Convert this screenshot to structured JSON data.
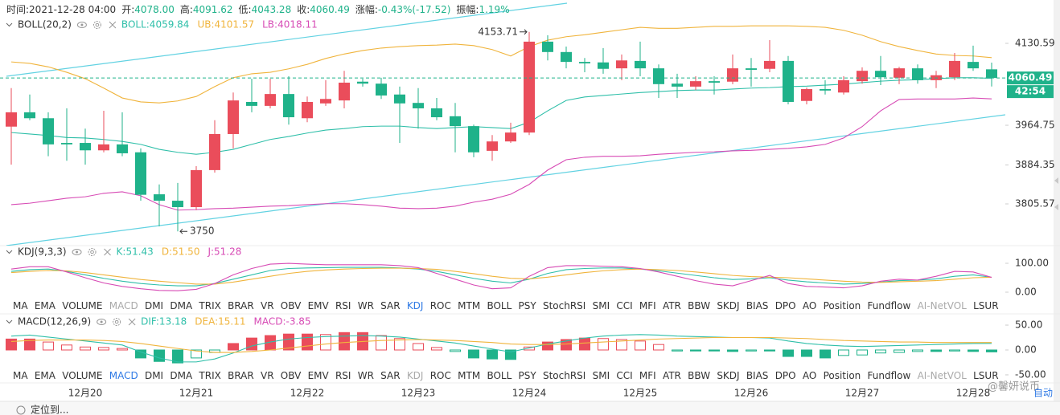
{
  "header": {
    "value_color": "#1fb28a",
    "items": [
      {
        "label": "时间:",
        "value": "2021-12-28 04:00"
      },
      {
        "label": "开:",
        "value": "4078.00"
      },
      {
        "label": "高:",
        "value": "4091.62"
      },
      {
        "label": "低:",
        "value": "4043.28"
      },
      {
        "label": "收:",
        "value": "4060.49"
      },
      {
        "label": "涨幅:",
        "value": "-0.43%(-17.52)"
      },
      {
        "label": "振幅:",
        "value": "1.19%"
      }
    ]
  },
  "indicator_tabs": [
    "MA",
    "EMA",
    "VOLUME",
    "MACD",
    "DMI",
    "DMA",
    "TRIX",
    "BRAR",
    "VR",
    "OBV",
    "EMV",
    "RSI",
    "WR",
    "SAR",
    "KDJ",
    "ROC",
    "MTM",
    "BOLL",
    "PSY",
    "StochRSI",
    "SMI",
    "CCI",
    "MFI",
    "ATR",
    "BBW",
    "SKDJ",
    "BIAS",
    "DPO",
    "AO",
    "Position",
    "Fundflow",
    "AI-NetVOL",
    "LSUR"
  ],
  "footer": {
    "locate": "定位到...",
    "watermark": "@馨妍说币",
    "auto_label": "自动"
  },
  "chart_data": [
    {
      "type": "candlestick",
      "title": "BOLL(20,2)",
      "up_color": "#ea4d5b",
      "down_color": "#1fb28a",
      "countdown": "42:54",
      "categories": [
        null,
        null,
        null,
        null,
        "12月20",
        null,
        null,
        null,
        null,
        null,
        "12月21",
        null,
        null,
        null,
        null,
        null,
        "12月22",
        null,
        null,
        null,
        null,
        null,
        "12月23",
        null,
        null,
        null,
        null,
        null,
        "12月24",
        null,
        null,
        null,
        null,
        null,
        "12月25",
        null,
        null,
        null,
        null,
        null,
        "12月26",
        null,
        null,
        null,
        null,
        null,
        "12月27",
        null,
        null,
        null,
        null,
        null,
        "12月28",
        null
      ],
      "open": [
        3962,
        3991,
        3979,
        3929,
        3929,
        3914,
        3926,
        3910,
        3825,
        3812,
        3799,
        3874,
        3947,
        4012,
        4004,
        4028,
        3979,
        4009,
        4015,
        4053,
        4049,
        4027,
        4010,
        3999,
        3983,
        3963,
        3913,
        3932,
        3950,
        4134,
        4113,
        4093,
        4092,
        4080,
        4095,
        4080,
        4049,
        4043,
        4054,
        4053,
        4080,
        4079,
        4095,
        4014,
        4038,
        4031,
        4054,
        4075,
        4061,
        4080,
        4056,
        4062,
        4093,
        4078
      ],
      "high": [
        4040,
        4027,
        3991,
        3999,
        3958,
        3994,
        3991,
        3918,
        3845,
        3848,
        3882,
        3975,
        4031,
        4059,
        4059,
        4064,
        4023,
        4056,
        4075,
        4059,
        4061,
        4043,
        4040,
        4020,
        4010,
        3966,
        3945,
        3970,
        4153.71,
        4147,
        4124,
        4101,
        4121,
        4108,
        4134,
        4088,
        4069,
        4064,
        4064,
        4108,
        4101,
        4137,
        4105,
        4041,
        4056,
        4064,
        4082,
        4105,
        4083,
        4088,
        4075,
        4111,
        4126,
        4091.62
      ],
      "low": [
        3885,
        3975,
        3902,
        3893,
        3885,
        3910,
        3902,
        3812,
        3760,
        3750,
        3793,
        3869,
        3918,
        3991,
        3999,
        3966,
        3971,
        4004,
        3999,
        4043,
        4018,
        3929,
        3958,
        3975,
        3910,
        3900,
        3893,
        3929,
        3945,
        4096,
        4080,
        4072,
        4069,
        4056,
        4064,
        4020,
        4020,
        4036,
        4027,
        4048,
        4043,
        4072,
        4007,
        4007,
        4027,
        4027,
        4049,
        4046,
        4048,
        4049,
        4040,
        4056,
        4075,
        4043.28
      ],
      "close": [
        3991,
        3979,
        3926,
        3926,
        3914,
        3926,
        3908,
        3824,
        3812,
        3799,
        3874,
        3947,
        4015,
        4004,
        4028,
        3981,
        4012,
        4018,
        4051,
        4049,
        4025,
        4009,
        3999,
        3981,
        3963,
        3910,
        3932,
        3950,
        4134,
        4113,
        4093,
        4090,
        4079,
        4096,
        4080,
        4048,
        4043,
        4054,
        4051,
        4080,
        4077,
        4095,
        4012,
        4038,
        4035,
        4056,
        4075,
        4062,
        4080,
        4056,
        4066,
        4095,
        4080,
        4060.49
      ],
      "series": [
        {
          "label": "BOLL:4059.84",
          "color": "#2fbfa9",
          "values": [
            3950,
            3947,
            3944,
            3940,
            3939,
            3936,
            3932,
            3926,
            3916,
            3910,
            3906,
            3910,
            3916,
            3926,
            3936,
            3942,
            3949,
            3955,
            3958,
            3962,
            3963,
            3963,
            3960,
            3958,
            3960,
            3962,
            3960,
            3958,
            3971,
            3994,
            4015,
            4022,
            4025,
            4028,
            4031,
            4033,
            4035,
            4036,
            4036,
            4038,
            4040,
            4041,
            4043,
            4044,
            4046,
            4048,
            4051,
            4054,
            4056,
            4057,
            4059,
            4061,
            4061,
            4059.84
          ]
        },
        {
          "label": "UB:4101.57",
          "color": "#f0b43c",
          "values": [
            4093,
            4090,
            4083,
            4072,
            4059,
            4040,
            4020,
            4012,
            4010,
            4014,
            4023,
            4043,
            4061,
            4069,
            4072,
            4079,
            4088,
            4100,
            4109,
            4116,
            4121,
            4124,
            4126,
            4127,
            4129,
            4126,
            4118,
            4105,
            4124,
            4137,
            4144,
            4148,
            4153,
            4158,
            4163,
            4161,
            4161,
            4163,
            4165,
            4165,
            4166,
            4166,
            4166,
            4165,
            4163,
            4157,
            4147,
            4134,
            4124,
            4116,
            4109,
            4106,
            4105,
            4101.57
          ]
        },
        {
          "label": "LB:4018.11",
          "color": "#d74bb5",
          "values": [
            3804,
            3807,
            3812,
            3817,
            3820,
            3827,
            3830,
            3822,
            3804,
            3793,
            3794,
            3796,
            3797,
            3799,
            3801,
            3802,
            3804,
            3806,
            3806,
            3804,
            3801,
            3797,
            3796,
            3797,
            3801,
            3809,
            3815,
            3825,
            3845,
            3874,
            3895,
            3900,
            3902,
            3902,
            3903,
            3906,
            3908,
            3910,
            3911,
            3913,
            3914,
            3916,
            3918,
            3921,
            3926,
            3939,
            3962,
            3994,
            4017,
            4018,
            4018,
            4018,
            4020,
            4018.11
          ]
        }
      ],
      "ylim": [
        3722.7,
        4210.2
      ],
      "yticks": [
        3805.57,
        3884.35,
        3964.75,
        4130.59
      ],
      "grid": false
    },
    {
      "type": "line",
      "title": "KDJ(9,3,3)",
      "active_tab": 14,
      "disabled_tabs": [
        3,
        31
      ],
      "series": [
        {
          "label": "K:51.43",
          "color": "#2fbfa9",
          "values": [
            72,
            78,
            80,
            72,
            60,
            48,
            38,
            30,
            25,
            22,
            22,
            30,
            45,
            60,
            75,
            82,
            84,
            85,
            86,
            86,
            86,
            84,
            80,
            72,
            60,
            48,
            38,
            32,
            45,
            65,
            78,
            82,
            84,
            84,
            80,
            74,
            66,
            58,
            50,
            44,
            46,
            50,
            42,
            36,
            32,
            28,
            30,
            35,
            40,
            42,
            46,
            55,
            60,
            51.43
          ]
        },
        {
          "label": "D:51.50",
          "color": "#f0b43c",
          "values": [
            68,
            72,
            75,
            74,
            68,
            60,
            52,
            44,
            38,
            33,
            28,
            28,
            35,
            45,
            55,
            65,
            72,
            77,
            80,
            82,
            83,
            83,
            82,
            79,
            72,
            64,
            55,
            48,
            46,
            52,
            60,
            68,
            74,
            78,
            80,
            78,
            75,
            70,
            64,
            58,
            54,
            52,
            50,
            46,
            42,
            38,
            35,
            34,
            36,
            38,
            40,
            45,
            50,
            51.5
          ]
        },
        {
          "label": "J:51.28",
          "color": "#d74bb5",
          "values": [
            80,
            88,
            88,
            70,
            50,
            32,
            20,
            12,
            6,
            5,
            10,
            30,
            60,
            82,
            97,
            100,
            97,
            95,
            95,
            95,
            95,
            92,
            85,
            65,
            45,
            25,
            12,
            15,
            55,
            85,
            92,
            92,
            90,
            88,
            82,
            70,
            55,
            40,
            28,
            22,
            40,
            58,
            30,
            20,
            18,
            15,
            22,
            38,
            45,
            42,
            55,
            72,
            70,
            51.28
          ]
        }
      ],
      "ylim": [
        -22.2,
        155.6
      ],
      "yticks": [
        {
          "value": 0,
          "label": "0.00"
        },
        {
          "value": 100,
          "label": "100.00"
        }
      ]
    },
    {
      "type": "macd",
      "title": "MACD(12,26,9)",
      "active_tab": 3,
      "disabled_tabs": [
        14,
        31
      ],
      "series": [
        {
          "label": "DIF:13.18",
          "color": "#2fbfa9",
          "values": [
            28,
            30,
            26,
            22,
            18,
            14,
            10,
            -4,
            -16,
            -24,
            -24,
            -18,
            -6,
            8,
            16,
            22,
            25,
            27,
            28,
            29,
            28,
            26,
            22,
            18,
            14,
            8,
            2,
            -4,
            4,
            12,
            18,
            24,
            28,
            30,
            31,
            30,
            28,
            27,
            26,
            25,
            25,
            24,
            18,
            13,
            10,
            8,
            7,
            8,
            9,
            10,
            11,
            12,
            13,
            13.18
          ]
        },
        {
          "label": "DEA:15.11",
          "color": "#f0b43c",
          "values": [
            17,
            19,
            20,
            20,
            20,
            19,
            17,
            13,
            8,
            3,
            -2,
            -5,
            -5,
            -3,
            0,
            4,
            8,
            12,
            15,
            17,
            19,
            20,
            21,
            20,
            19,
            17,
            15,
            12,
            11,
            11,
            12,
            14,
            16,
            18,
            20,
            22,
            23,
            24,
            25,
            25,
            25,
            25,
            24,
            23,
            21,
            19,
            18,
            17,
            16,
            16,
            15,
            15,
            15,
            15.11
          ]
        }
      ],
      "histogram": {
        "label": "MACD:-3.85",
        "color": "#d74bb5",
        "up_color": "#ea4d5b",
        "down_color": "#1fb28a",
        "values": [
          22,
          22,
          16,
          10,
          6,
          5,
          3,
          -16,
          -23,
          -26,
          -16,
          -5,
          13,
          24,
          29,
          32,
          32,
          31,
          35,
          35,
          29,
          23,
          13,
          5,
          -3,
          -16,
          -18,
          -19,
          6,
          16,
          21,
          24,
          23,
          21,
          18,
          11,
          -2,
          -2,
          -2,
          -3,
          -2,
          -2,
          -13,
          -13,
          -16,
          -11,
          -10,
          -6,
          -5,
          -3,
          -3,
          -2,
          -3,
          -3.85
        ]
      },
      "ylim": [
        -58.1,
        69.4
      ],
      "yticks": [
        {
          "value": -50,
          "label": "-50.00"
        },
        {
          "value": 0,
          "label": "0.00"
        },
        {
          "value": 50,
          "label": "50.00"
        }
      ]
    }
  ]
}
